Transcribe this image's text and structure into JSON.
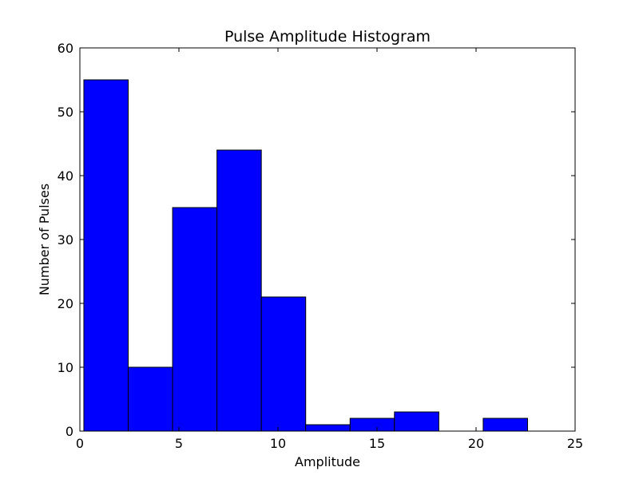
{
  "chart_data": {
    "type": "bar",
    "title": "Pulse Amplitude Histogram",
    "xlabel": "Amplitude",
    "ylabel": "Number of Pulses",
    "xlim": [
      0,
      25
    ],
    "ylim": [
      0,
      60
    ],
    "xticks": [
      0,
      5,
      10,
      15,
      20,
      25
    ],
    "yticks": [
      0,
      10,
      20,
      30,
      40,
      50,
      60
    ],
    "grid": false,
    "bar_color": "#0000ff",
    "edge_color": "#000000",
    "bins": [
      {
        "x0": 0.2,
        "x1": 2.44,
        "count": 55
      },
      {
        "x0": 2.44,
        "x1": 4.68,
        "count": 10
      },
      {
        "x0": 4.68,
        "x1": 6.92,
        "count": 35
      },
      {
        "x0": 6.92,
        "x1": 9.16,
        "count": 44
      },
      {
        "x0": 9.16,
        "x1": 11.4,
        "count": 21
      },
      {
        "x0": 11.4,
        "x1": 13.64,
        "count": 1
      },
      {
        "x0": 13.64,
        "x1": 15.88,
        "count": 2
      },
      {
        "x0": 15.88,
        "x1": 18.12,
        "count": 3
      },
      {
        "x0": 18.12,
        "x1": 20.36,
        "count": 0
      },
      {
        "x0": 20.36,
        "x1": 22.6,
        "count": 2
      }
    ]
  }
}
